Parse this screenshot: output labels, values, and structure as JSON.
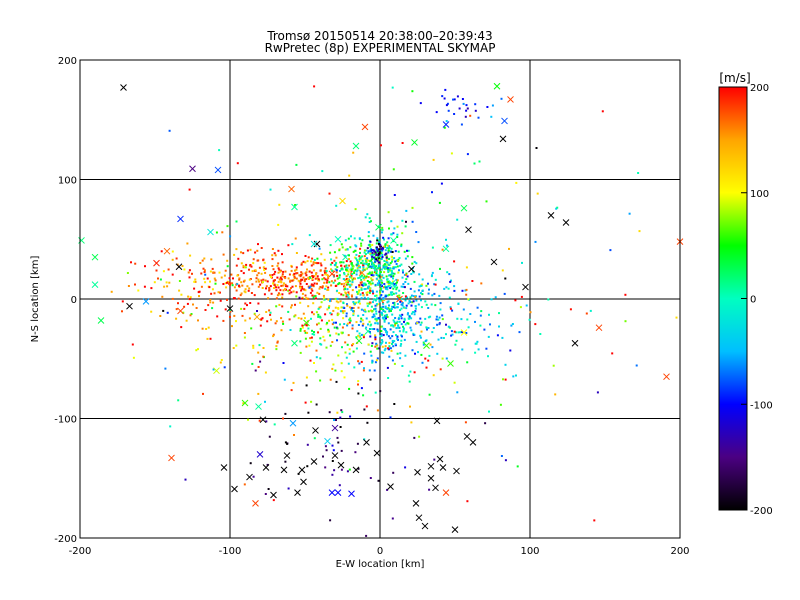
{
  "title_line1": "Tromsø 20150514 20:38:00–20:39:43",
  "title_line2": "RwPretec (8p) EXPERIMENTAL SKYMAP",
  "chart_data": {
    "type": "scatter",
    "xlabel": "E-W location [km]",
    "ylabel": "N-S location [km]",
    "xlim": [
      -200,
      200
    ],
    "ylim": [
      -200,
      200
    ],
    "xticks": [
      -200,
      -100,
      0,
      100,
      200
    ],
    "yticks": [
      -200,
      -100,
      0,
      100,
      200
    ],
    "grid": true,
    "colorbar": {
      "label": "[m/s]",
      "range": [
        -200,
        200
      ],
      "ticks": [
        200,
        100,
        0,
        -100,
        -200
      ],
      "colormap": [
        "#000000",
        "#4b0082",
        "#0000ff",
        "#00bfff",
        "#00ffc0",
        "#00ff00",
        "#ffff00",
        "#ffa500",
        "#ff0000"
      ]
    },
    "points": {
      "x_markers": [
        [
          -171,
          177,
          -200
        ],
        [
          78,
          178,
          50
        ],
        [
          87,
          167,
          180
        ],
        [
          83,
          149,
          -80
        ],
        [
          44,
          146,
          -90
        ],
        [
          82,
          134,
          -200
        ],
        [
          -10,
          144,
          180
        ],
        [
          -16,
          128,
          20
        ],
        [
          23,
          131,
          40
        ],
        [
          -125,
          109,
          -150
        ],
        [
          -108,
          108,
          -80
        ],
        [
          -59,
          92,
          170
        ],
        [
          -57,
          77,
          10
        ],
        [
          -25,
          82,
          120
        ],
        [
          56,
          76,
          30
        ],
        [
          -133,
          67,
          -90
        ],
        [
          -113,
          56,
          -20
        ],
        [
          -199,
          49,
          20
        ],
        [
          -190,
          35,
          30
        ],
        [
          -149,
          30,
          190
        ],
        [
          -190,
          12,
          10
        ],
        [
          -167,
          -6,
          -200
        ],
        [
          -156,
          -2,
          -60
        ],
        [
          -186,
          -18,
          30
        ],
        [
          -139,
          -133,
          180
        ],
        [
          -83,
          -171,
          180
        ],
        [
          -142,
          40,
          170
        ],
        [
          -42,
          46,
          -200
        ],
        [
          -28,
          50,
          0
        ],
        [
          -1,
          60,
          30
        ],
        [
          9,
          49,
          10
        ],
        [
          21,
          25,
          -200
        ],
        [
          76,
          31,
          -200
        ],
        [
          114,
          70,
          -200
        ],
        [
          124,
          64,
          -200
        ],
        [
          97,
          10,
          -200
        ],
        [
          130,
          -37,
          -200
        ],
        [
          146,
          -24,
          180
        ],
        [
          191,
          -65,
          180
        ],
        [
          200,
          48,
          180
        ],
        [
          13,
          0,
          180
        ],
        [
          44,
          42,
          10
        ],
        [
          47,
          -54,
          60
        ],
        [
          -109,
          -60,
          90
        ],
        [
          -90,
          -87,
          60
        ],
        [
          -81,
          -90,
          10
        ],
        [
          -43,
          -110,
          -200
        ],
        [
          -35,
          -119,
          -40
        ],
        [
          -30,
          -108,
          -140
        ],
        [
          -58,
          -104,
          -60
        ],
        [
          -80,
          -130,
          -120
        ],
        [
          -76,
          -141,
          -200
        ],
        [
          -64,
          -143,
          -200
        ],
        [
          -62,
          -131,
          -200
        ],
        [
          -52,
          -143,
          -200
        ],
        [
          -51,
          -153,
          -200
        ],
        [
          -44,
          -136,
          -200
        ],
        [
          -30,
          -131,
          -200
        ],
        [
          -26,
          -139,
          -200
        ],
        [
          -16,
          -143,
          -200
        ],
        [
          -28,
          -162,
          -100
        ],
        [
          -19,
          -163,
          -100
        ],
        [
          -32,
          -162,
          -100
        ],
        [
          7,
          -157,
          -200
        ],
        [
          25,
          -145,
          -200
        ],
        [
          40,
          -134,
          -200
        ],
        [
          42,
          -141,
          -200
        ],
        [
          37,
          -158,
          -200
        ],
        [
          24,
          -171,
          -200
        ],
        [
          26,
          -183,
          -200
        ],
        [
          30,
          -190,
          -200
        ],
        [
          50,
          -193,
          -200
        ],
        [
          44,
          -162,
          180
        ],
        [
          51,
          -144,
          -200
        ],
        [
          34,
          -140,
          -200
        ],
        [
          34,
          -150,
          -200
        ],
        [
          38,
          -102,
          -200
        ],
        [
          58,
          -115,
          -200
        ],
        [
          -44,
          46,
          -20
        ],
        [
          -23,
          35,
          10
        ],
        [
          8,
          13,
          0
        ],
        [
          -32,
          21,
          180
        ],
        [
          -12,
          22,
          160
        ],
        [
          -8,
          -27,
          10
        ],
        [
          -57,
          -37,
          20
        ],
        [
          -100,
          -8,
          -200
        ],
        [
          -134,
          27,
          -200
        ],
        [
          59,
          58,
          -200
        ],
        [
          -78,
          -101,
          -200
        ],
        [
          -71,
          -164,
          -200
        ],
        [
          -104,
          -141,
          -200
        ],
        [
          -97,
          -159,
          -200
        ],
        [
          -87,
          -149,
          -200
        ],
        [
          -55,
          -162,
          -200
        ],
        [
          -9,
          -120,
          -200
        ],
        [
          -2,
          -129,
          -200
        ],
        [
          62,
          -120,
          -200
        ],
        [
          -133,
          -10,
          180
        ],
        [
          -82,
          -15,
          150
        ],
        [
          -49,
          -20,
          60
        ],
        [
          -14,
          -35,
          40
        ],
        [
          31,
          -39,
          60
        ],
        [
          56,
          -28,
          100
        ]
      ],
      "dot_clusters": [
        {
          "cx": -58,
          "cy": 18,
          "sx": 22,
          "sy": 10,
          "n": 240,
          "v": 175,
          "vs": 30
        },
        {
          "cx": -100,
          "cy": 12,
          "sx": 30,
          "sy": 14,
          "n": 200,
          "v": 165,
          "vs": 40
        },
        {
          "cx": -22,
          "cy": 8,
          "sx": 14,
          "sy": 14,
          "n": 120,
          "v": 150,
          "vs": 45
        },
        {
          "cx": -10,
          "cy": 28,
          "sx": 12,
          "sy": 10,
          "n": 200,
          "v": 35,
          "vs": 40
        },
        {
          "cx": 2,
          "cy": 22,
          "sx": 9,
          "sy": 22,
          "n": 260,
          "v": 5,
          "vs": 45
        },
        {
          "cx": 5,
          "cy": -12,
          "sx": 18,
          "sy": 22,
          "n": 320,
          "v": -45,
          "vs": 30
        },
        {
          "cx": 40,
          "cy": -15,
          "sx": 25,
          "sy": 18,
          "n": 140,
          "v": -40,
          "vs": 35
        },
        {
          "cx": -25,
          "cy": -30,
          "sx": 20,
          "sy": 18,
          "n": 120,
          "v": 80,
          "vs": 60
        },
        {
          "cx": -75,
          "cy": -22,
          "sx": 35,
          "sy": 22,
          "n": 100,
          "v": 150,
          "vs": 60
        },
        {
          "cx": 0,
          "cy": 40,
          "sx": 4,
          "sy": 5,
          "n": 45,
          "v": -150,
          "vs": 40
        },
        {
          "cx": 55,
          "cy": 160,
          "sx": 12,
          "sy": 6,
          "n": 28,
          "v": -100,
          "vs": 20
        },
        {
          "cx": 0,
          "cy": 0,
          "sx": 80,
          "sy": 70,
          "n": 260,
          "v": 60,
          "vs": 110
        },
        {
          "cx": -30,
          "cy": -130,
          "sx": 35,
          "sy": 30,
          "n": 60,
          "v": -170,
          "vs": 40
        }
      ]
    }
  }
}
